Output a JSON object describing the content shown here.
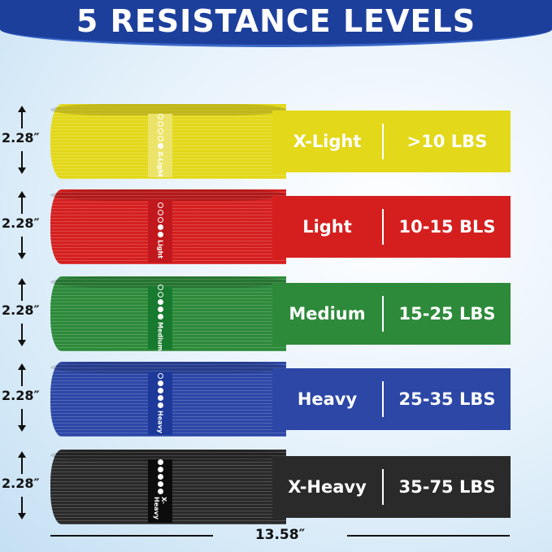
{
  "title": "5 RESISTANCE LEVELS",
  "bands": [
    {
      "level": "X-Light",
      "resistance": ">10 LBS",
      "tag": "X-Light",
      "filled_dots": 1,
      "height": "2.28″",
      "color": "#e3d81a",
      "tag_color": "#ece46a"
    },
    {
      "level": "Light",
      "resistance": "10-15 BLS",
      "tag": "Light",
      "filled_dots": 2,
      "height": "2.28″",
      "color": "#d51f1f",
      "tag_color": "#c0181d"
    },
    {
      "level": "Medium",
      "resistance": "15-25 LBS",
      "tag": "Medium",
      "filled_dots": 3,
      "height": "2.28″",
      "color": "#2d8a3a",
      "tag_color": "#177a2e"
    },
    {
      "level": "Heavy",
      "resistance": "25-35 LBS",
      "tag": "Heavy",
      "filled_dots": 4,
      "height": "2.28″",
      "color": "#2c47a6",
      "tag_color": "#1d3a9a"
    },
    {
      "level": "X-Heavy",
      "resistance": "35-75 LBS",
      "tag": "X-Heavy",
      "filled_dots": 5,
      "height": "2.28″",
      "color": "#2a2a2a",
      "tag_color": "#0c0c0c"
    }
  ],
  "width_label": "13.58″"
}
